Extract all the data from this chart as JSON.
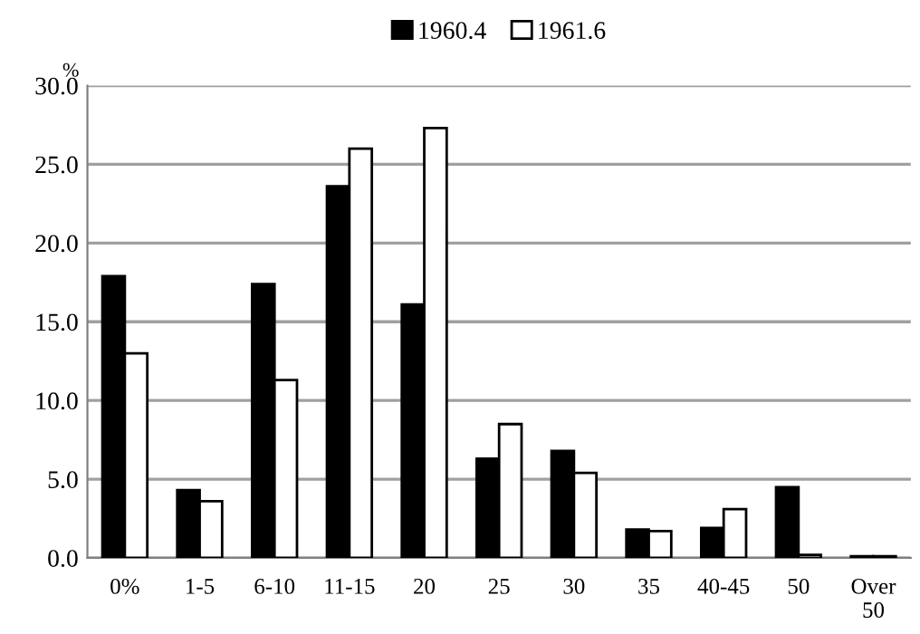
{
  "chart_data": {
    "type": "bar",
    "ylabel": "%",
    "categories": [
      "0%",
      "1-5",
      "6-10",
      "11-15",
      "20",
      "25",
      "30",
      "35",
      "40-45",
      "50",
      "Over\n50"
    ],
    "series": [
      {
        "name": "1960.4",
        "color": "#000000",
        "values": [
          17.9,
          4.3,
          17.4,
          23.6,
          16.1,
          6.3,
          6.8,
          1.8,
          1.9,
          4.5,
          0.1
        ]
      },
      {
        "name": "1961.6",
        "color": "#ffffff",
        "values": [
          13.0,
          3.6,
          11.3,
          26.0,
          27.3,
          8.5,
          5.4,
          1.7,
          3.1,
          0.2,
          0.1
        ]
      }
    ],
    "ylim": [
      0,
      30
    ],
    "yticks": [
      {
        "value": 0,
        "label": "0.0"
      },
      {
        "value": 5,
        "label": "5.0"
      },
      {
        "value": 10,
        "label": "10.0"
      },
      {
        "value": 15,
        "label": "15.0"
      },
      {
        "value": 20,
        "label": "20.0"
      },
      {
        "value": 25,
        "label": "25.0"
      },
      {
        "value": 30,
        "label": "30.0"
      }
    ],
    "grid": "y",
    "legend": "top"
  }
}
